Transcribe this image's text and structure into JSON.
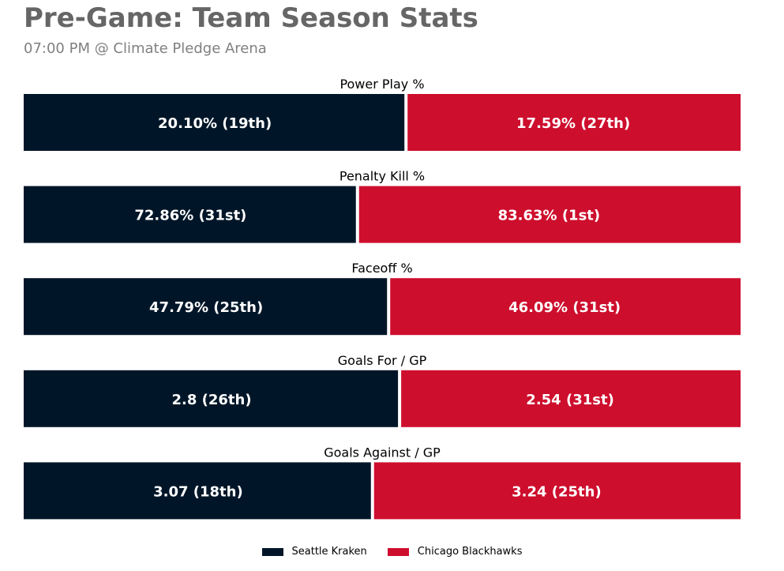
{
  "title": "Pre-Game: Team Season Stats",
  "subtitle": "07:00 PM @ Climate Pledge Arena",
  "colors": {
    "home": "#001628",
    "away": "#CE0E2D"
  },
  "chart_data": {
    "type": "bar",
    "orientation": "horizontal-stacked-share",
    "categories": [
      "Power Play %",
      "Penalty Kill %",
      "Faceoff %",
      "Goals For / GP",
      "Goals Against / GP"
    ],
    "series": [
      {
        "name": "Seattle Kraken",
        "color": "#001628",
        "values": [
          20.1,
          72.86,
          47.79,
          2.8,
          3.07
        ],
        "labels": [
          "20.10% (19th)",
          "72.86% (31st)",
          "47.79% (25th)",
          "2.8 (26th)",
          "3.07 (18th)"
        ]
      },
      {
        "name": "Chicago Blackhawks",
        "color": "#CE0E2D",
        "values": [
          17.59,
          83.63,
          46.09,
          2.54,
          3.24
        ],
        "labels": [
          "17.59% (27th)",
          "83.63% (1st)",
          "46.09% (31st)",
          "2.54 (31st)",
          "3.24 (25th)"
        ]
      }
    ],
    "legend": "bottom-center",
    "grid": false
  }
}
